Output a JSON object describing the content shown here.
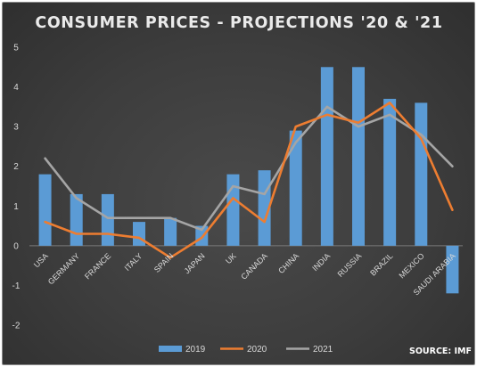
{
  "chart_data": {
    "type": "bar",
    "title": "CONSUMER PRICES - PROJECTIONS '20 & '21",
    "source": "SOURCE: IMF",
    "categories": [
      "USA",
      "GERMANY",
      "FRANCE",
      "ITALY",
      "SPAIN",
      "JAPAN",
      "UK",
      "CANADA",
      "CHINA",
      "INDIA",
      "RUSSIA",
      "BRAZIL",
      "MEXICO",
      "SAUDI ARABIA"
    ],
    "ylim": [
      -2,
      5
    ],
    "yticks": [
      "5",
      "4",
      "3",
      "2",
      "1",
      "0",
      "-1",
      "-2"
    ],
    "series": [
      {
        "name": "2019",
        "kind": "bar",
        "color": "#5b9bd5",
        "values": [
          1.8,
          1.3,
          1.3,
          0.6,
          0.7,
          0.5,
          1.8,
          1.9,
          2.9,
          4.5,
          4.5,
          3.7,
          3.6,
          -1.2
        ]
      },
      {
        "name": "2020",
        "kind": "line",
        "color": "#ed7d31",
        "values": [
          0.6,
          0.3,
          0.3,
          0.2,
          -0.3,
          0.2,
          1.2,
          0.6,
          3.0,
          3.3,
          3.1,
          3.6,
          2.7,
          0.9
        ]
      },
      {
        "name": "2021",
        "kind": "line",
        "color": "#a5a5a5",
        "values": [
          2.2,
          1.2,
          0.7,
          0.7,
          0.7,
          0.4,
          1.5,
          1.3,
          2.6,
          3.5,
          3.0,
          3.3,
          2.8,
          2.0
        ]
      }
    ],
    "legend_position": "bottom",
    "grid": false
  }
}
